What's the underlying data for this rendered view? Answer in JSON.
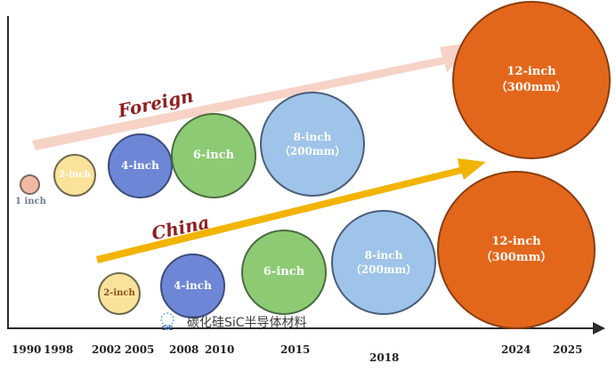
{
  "diagram": {
    "arrow_labels": {
      "foreign": "Foreign",
      "china": "China"
    },
    "years": [
      "1990",
      "1998",
      "2002",
      "2005",
      "2008",
      "2010",
      "2015",
      "2018",
      "2024",
      "2025"
    ],
    "foreign_wafers": [
      {
        "size": "1 inch"
      },
      {
        "size": "2-inch"
      },
      {
        "size": "4-inch"
      },
      {
        "size": "6-inch"
      },
      {
        "size": "8-inch",
        "mm": "（200mm）"
      },
      {
        "size": "12-inch",
        "mm": "（300mm）"
      }
    ],
    "china_wafers": [
      {
        "size": "2-inch"
      },
      {
        "size": "4-inch"
      },
      {
        "size": "6-inch"
      },
      {
        "size": "8-inch",
        "mm": "（200mm）"
      },
      {
        "size": "12-inch",
        "mm": "（300mm）"
      }
    ],
    "watermark": "碳化硅SiC半导体材料",
    "logo_text": "SiC",
    "colors": {
      "foreign_arrow": "#f6d3c6",
      "china_arrow": "#f2b400",
      "label_red": "#8e2020",
      "yellow": "#fbe29a",
      "blue": "#6d86d6",
      "green": "#8ccb74",
      "light_blue": "#9fc4ea",
      "orange": "#e3671b"
    }
  }
}
